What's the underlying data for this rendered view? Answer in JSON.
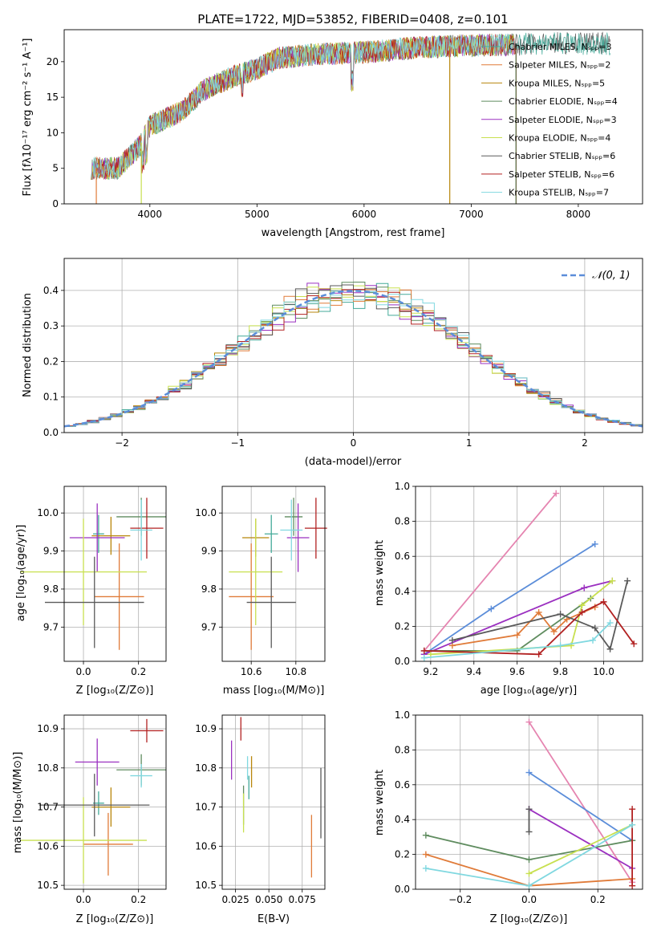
{
  "colors": {
    "series": [
      "#44aa99",
      "#e07b39",
      "#b8860b",
      "#5f8c5f",
      "#9b30c0",
      "#c8e050",
      "#5a5a5a",
      "#b22222",
      "#80d8e0"
    ],
    "grid": "#b0b0b0",
    "normal": "#5b8dd9"
  },
  "spectrum": {
    "title": "PLATE=1722, MJD=53852, FIBERID=0408, z=0.101",
    "xlabel": "wavelength [Angstrom, rest frame]",
    "ylabel": "Flux [fλ10⁻¹⁷ erg cm⁻² s⁻¹ A⁻¹]",
    "xlim": [
      3200,
      8600
    ],
    "ylim": [
      0,
      24.5
    ],
    "xticks": [
      "4000",
      "5000",
      "6000",
      "7000",
      "8000"
    ],
    "yticks": [
      "0",
      "5",
      "10",
      "15",
      "20"
    ],
    "legend": [
      "Chabrier MILES, Nₛₚₚ=3",
      "Salpeter MILES, Nₛₚₚ=2",
      "Kroupa MILES, Nₛₚₚ=5",
      "Chabrier ELODIE, Nₛₚₚ=4",
      "Salpeter ELODIE, Nₛₚₚ=3",
      "Kroupa ELODIE, Nₛₚₚ=4",
      "Chabrier STELIB, Nₛₚₚ=6",
      "Salpeter STELIB, Nₛₚₚ=6",
      "Kroupa STELIB, Nₛₚₚ=7"
    ]
  },
  "residuals": {
    "xlabel": "(data-model)/error",
    "ylabel": "Normed distribution",
    "xlim": [
      -2.5,
      2.5
    ],
    "ylim": [
      0,
      0.49
    ],
    "xticks": [
      "−2",
      "−1",
      "0",
      "1",
      "2"
    ],
    "yticks": [
      "0.0",
      "0.1",
      "0.2",
      "0.3",
      "0.4"
    ],
    "legend": "𝒩(0, 1)"
  },
  "age_Z": {
    "xlabel": "Z [log₁₀(Z/Z⊙)]",
    "ylabel": "age  [log₁₀(age/yr)]",
    "xticks": [
      "0.0",
      "0.2"
    ],
    "yticks": [
      "9.7",
      "9.8",
      "9.9",
      "10.0"
    ]
  },
  "age_mass": {
    "xlabel": "mass [log₁₀(M/M⊙)]",
    "xticks": [
      "10.6",
      "10.8"
    ],
    "yticks": [
      "9.7",
      "9.8",
      "9.9",
      "10.0"
    ]
  },
  "mass_Z": {
    "xlabel": "Z [log₁₀(Z/Z⊙)]",
    "ylabel": "mass [log₁₀(M/M⊙)]",
    "xticks": [
      "0.0",
      "0.2"
    ],
    "yticks": [
      "10.5",
      "10.6",
      "10.7",
      "10.8",
      "10.9"
    ]
  },
  "mass_ebv": {
    "xlabel": "E(B-V)",
    "xticks": [
      "0.025",
      "0.050",
      "0.075"
    ],
    "yticks": [
      "10.5",
      "10.6",
      "10.7",
      "10.8",
      "10.9"
    ]
  },
  "mw_age": {
    "xlabel": "age  [log₁₀(age/yr)]",
    "ylabel": "mass weight",
    "xticks": [
      "9.2",
      "9.4",
      "9.6",
      "9.8",
      "10.0"
    ],
    "yticks": [
      "0.0",
      "0.2",
      "0.4",
      "0.6",
      "0.8",
      "1.0"
    ]
  },
  "mw_Z": {
    "xlabel": "Z [log₁₀(Z/Z⊙)]",
    "ylabel": "mass weight",
    "xticks": [
      "−0.2",
      "0.0",
      "0.2"
    ],
    "yticks": [
      "0.0",
      "0.2",
      "0.4",
      "0.6",
      "0.8",
      "1.0"
    ]
  },
  "chart_data": [
    {
      "type": "line",
      "title": "PLATE=1722, MJD=53852, FIBERID=0408, z=0.101",
      "xlabel": "wavelength [Angstrom, rest frame]",
      "ylabel": "Flux [fλ10⁻¹⁷ erg cm⁻² s⁻¹ A⁻¹]",
      "xlim": [
        3200,
        8600
      ],
      "ylim": [
        0,
        24.5
      ],
      "legend_position": "top-right",
      "continuum": {
        "x": [
          3450,
          3700,
          3900,
          4000,
          4300,
          4500,
          4800,
          5000,
          5200,
          5500,
          6000,
          6500,
          7000,
          7400,
          7700,
          8300
        ],
        "y": [
          5,
          5,
          8,
          11,
          13,
          16,
          18,
          19,
          20.5,
          21,
          21.3,
          22,
          22.3,
          22.4,
          22.6,
          22.5
        ]
      },
      "series_names": [
        "Chabrier MILES",
        "Salpeter MILES",
        "Kroupa MILES",
        "Chabrier ELODIE",
        "Salpeter ELODIE",
        "Kroupa ELODIE",
        "Chabrier STELIB",
        "Salpeter STELIB",
        "Kroupa STELIB"
      ]
    },
    {
      "type": "line",
      "xlabel": "(data-model)/error",
      "ylabel": "Normed distribution",
      "xlim": [
        -2.5,
        2.5
      ],
      "ylim": [
        0,
        0.49
      ],
      "grid": true,
      "legend_position": "top-right",
      "histogram_bins": 50,
      "reference_curve": "N(0,1)"
    },
    {
      "type": "scatter",
      "xlabel": "Z [log₁₀(Z/Z⊙)]",
      "ylabel": "age  [log₁₀(age/yr)]",
      "xlim": [
        -0.07,
        0.3
      ],
      "ylim": [
        9.61,
        10.07
      ],
      "grid": true,
      "points": [
        {
          "x": 0.055,
          "y": 9.945,
          "xerr": 0.02,
          "yerr": 0.05
        },
        {
          "x": 0.13,
          "y": 9.78,
          "xerr": 0.09,
          "yerr": 0.14
        },
        {
          "x": 0.1,
          "y": 9.94,
          "xerr": 0.07,
          "yerr": 0.05
        },
        {
          "x": 0.21,
          "y": 9.99,
          "xerr": 0.09,
          "yerr": 0.05
        },
        {
          "x": 0.05,
          "y": 9.935,
          "xerr": 0.1,
          "yerr": 0.09
        },
        {
          "x": 0.0,
          "y": 9.845,
          "xerr": 0.23,
          "yerr": 0.14
        },
        {
          "x": 0.04,
          "y": 9.765,
          "xerr": 0.18,
          "yerr": 0.12
        },
        {
          "x": 0.23,
          "y": 9.96,
          "xerr": 0.06,
          "yerr": 0.08
        },
        {
          "x": 0.21,
          "y": 9.955,
          "xerr": 0.04,
          "yerr": 0.08
        }
      ]
    },
    {
      "type": "scatter",
      "xlabel": "mass [log₁₀(M/M⊙)]",
      "xlim": [
        10.47,
        10.93
      ],
      "ylim": [
        9.61,
        10.07
      ],
      "grid": true,
      "points": [
        {
          "x": 10.69,
          "y": 9.945,
          "xerr": 0.03,
          "yerr": 0.05
        },
        {
          "x": 10.6,
          "y": 9.78,
          "xerr": 0.1,
          "yerr": 0.14
        },
        {
          "x": 10.62,
          "y": 9.935,
          "xerr": 0.06,
          "yerr": 0.05
        },
        {
          "x": 10.79,
          "y": 9.99,
          "xerr": 0.04,
          "yerr": 0.05
        },
        {
          "x": 10.81,
          "y": 9.935,
          "xerr": 0.05,
          "yerr": 0.09
        },
        {
          "x": 10.62,
          "y": 9.845,
          "xerr": 0.12,
          "yerr": 0.14
        },
        {
          "x": 10.69,
          "y": 9.765,
          "xerr": 0.11,
          "yerr": 0.12
        },
        {
          "x": 10.89,
          "y": 9.96,
          "xerr": 0.05,
          "yerr": 0.08
        },
        {
          "x": 10.78,
          "y": 9.955,
          "xerr": 0.05,
          "yerr": 0.08
        }
      ]
    },
    {
      "type": "line",
      "xlabel": "age  [log₁₀(age/yr)]",
      "ylabel": "mass weight",
      "xlim": [
        9.13,
        10.18
      ],
      "ylim": [
        0,
        1.0
      ],
      "grid": true,
      "series": [
        {
          "x": [
            9.17,
            9.78
          ],
          "y": [
            0.06,
            0.96
          ]
        },
        {
          "x": [
            9.17,
            9.48,
            9.96
          ],
          "y": [
            0.04,
            0.3,
            0.67
          ]
        },
        {
          "x": [
            9.17,
            9.91,
            10.04
          ],
          "y": [
            0.04,
            0.42,
            0.46
          ]
        },
        {
          "x": [
            9.17,
            9.6,
            9.94
          ],
          "y": [
            0.06,
            0.06,
            0.36
          ]
        },
        {
          "x": [
            9.3,
            9.6,
            9.7,
            9.77,
            9.83,
            9.96
          ],
          "y": [
            0.09,
            0.15,
            0.28,
            0.17,
            0.24,
            0.31
          ]
        },
        {
          "x": [
            9.2,
            9.85,
            9.9,
            10.04
          ],
          "y": [
            0.04,
            0.09,
            0.32,
            0.46
          ]
        },
        {
          "x": [
            9.3,
            9.8,
            9.96,
            10.03,
            10.11
          ],
          "y": [
            0.12,
            0.27,
            0.19,
            0.07,
            0.46
          ]
        },
        {
          "x": [
            9.17,
            9.7,
            9.9,
            10.0,
            10.14
          ],
          "y": [
            0.06,
            0.04,
            0.28,
            0.34,
            0.1
          ]
        },
        {
          "x": [
            9.17,
            9.8,
            9.95,
            10.03
          ],
          "y": [
            0.02,
            0.09,
            0.12,
            0.22
          ]
        }
      ]
    },
    {
      "type": "scatter",
      "xlabel": "Z [log₁₀(Z/Z⊙)]",
      "ylabel": "mass [log₁₀(M/M⊙)]",
      "xlim": [
        -0.07,
        0.3
      ],
      "ylim": [
        10.49,
        10.935
      ],
      "grid": true,
      "points": [
        {
          "x": 0.055,
          "y": 10.71,
          "xerr": 0.02,
          "yerr": 0.03
        },
        {
          "x": 0.09,
          "y": 10.605,
          "xerr": 0.09,
          "yerr": 0.08
        },
        {
          "x": 0.1,
          "y": 10.7,
          "xerr": 0.07,
          "yerr": 0.05
        },
        {
          "x": 0.21,
          "y": 10.795,
          "xerr": 0.09,
          "yerr": 0.04
        },
        {
          "x": 0.05,
          "y": 10.815,
          "xerr": 0.08,
          "yerr": 0.06
        },
        {
          "x": 0.0,
          "y": 10.615,
          "xerr": 0.23,
          "yerr": 0.11
        },
        {
          "x": 0.04,
          "y": 10.705,
          "xerr": 0.2,
          "yerr": 0.08
        },
        {
          "x": 0.23,
          "y": 10.895,
          "xerr": 0.06,
          "yerr": 0.03
        },
        {
          "x": 0.21,
          "y": 10.78,
          "xerr": 0.04,
          "yerr": 0.03
        }
      ]
    },
    {
      "type": "scatter",
      "xlabel": "E(B-V)",
      "xlim": [
        0.015,
        0.092
      ],
      "ylim": [
        10.49,
        10.935
      ],
      "grid": true,
      "points": [
        {
          "x": 0.035,
          "y": 10.75,
          "yerr": 0.03
        },
        {
          "x": 0.082,
          "y": 10.6,
          "yerr": 0.08
        },
        {
          "x": 0.037,
          "y": 10.79,
          "yerr": 0.04
        },
        {
          "x": 0.031,
          "y": 10.705,
          "yerr": 0.05
        },
        {
          "x": 0.022,
          "y": 10.82,
          "yerr": 0.05
        },
        {
          "x": 0.031,
          "y": 10.685,
          "yerr": 0.05
        },
        {
          "x": 0.089,
          "y": 10.71,
          "yerr": 0.09
        },
        {
          "x": 0.029,
          "y": 10.9,
          "yerr": 0.03
        },
        {
          "x": 0.034,
          "y": 10.8,
          "yerr": 0.03
        }
      ]
    },
    {
      "type": "line",
      "xlabel": "Z [log₁₀(Z/Z⊙)]",
      "ylabel": "mass weight",
      "xlim": [
        -0.33,
        0.33
      ],
      "ylim": [
        0,
        1.0
      ],
      "grid": true,
      "series": [
        {
          "x": [
            0.0,
            0.3
          ],
          "y": [
            0.96,
            0.04
          ]
        },
        {
          "x": [
            0.0,
            0.3
          ],
          "y": [
            0.67,
            0.28
          ]
        },
        {
          "x": [
            0.0,
            0.3
          ],
          "y": [
            0.46,
            0.12
          ]
        },
        {
          "x": [
            -0.3,
            0.0,
            0.3
          ],
          "y": [
            0.31,
            0.17,
            0.28
          ]
        },
        {
          "x": [
            -0.3,
            0.0,
            0.3
          ],
          "y": [
            0.2,
            0.02,
            0.06
          ]
        },
        {
          "x": [
            0.0,
            0.3
          ],
          "y": [
            0.09,
            0.37
          ]
        },
        {
          "x": [
            0.0,
            0.0
          ],
          "y": [
            0.33,
            0.46
          ]
        },
        {
          "x": [
            0.3,
            0.3
          ],
          "y": [
            0.02,
            0.46
          ]
        },
        {
          "x": [
            -0.3,
            0.0,
            0.3
          ],
          "y": [
            0.12,
            0.02,
            0.37
          ]
        }
      ]
    }
  ]
}
